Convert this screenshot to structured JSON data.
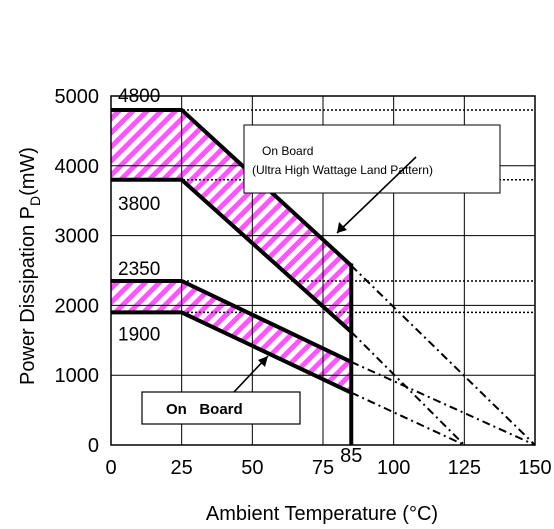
{
  "chart_data": {
    "type": "line",
    "xlabel": "Ambient Temperature (°C)",
    "ylabel": "Power Dissipation P",
    "ylabel_sub": "D",
    "ylabel_unit": "(mW)",
    "xlim": [
      0,
      150
    ],
    "ylim": [
      0,
      5000
    ],
    "x_ticks": [
      0,
      25,
      50,
      75,
      100,
      125,
      150
    ],
    "y_ticks": [
      0,
      1000,
      2000,
      3000,
      4000,
      5000
    ],
    "x_marker": {
      "label": "85",
      "value": 85
    },
    "annotations": [
      {
        "text": "4800",
        "value": 4800
      },
      {
        "text": "3800",
        "value": 3800
      },
      {
        "text": "2350",
        "value": 2350
      },
      {
        "text": "1900",
        "value": 1900
      }
    ],
    "series": [
      {
        "values": [
          [
            0,
            4800
          ],
          [
            25,
            4800
          ],
          [
            85,
            2570
          ]
        ],
        "dashed_extension": [
          [
            85,
            2570
          ],
          [
            150,
            0
          ]
        ]
      },
      {
        "values": [
          [
            0,
            3800
          ],
          [
            25,
            3800
          ],
          [
            85,
            1620
          ]
        ],
        "dashed_extension": [
          [
            85,
            1620
          ],
          [
            125,
            0
          ]
        ]
      },
      {
        "values": [
          [
            0,
            2350
          ],
          [
            25,
            2350
          ],
          [
            85,
            1190
          ]
        ],
        "dashed_extension": [
          [
            85,
            1190
          ],
          [
            150,
            0
          ]
        ]
      },
      {
        "values": [
          [
            0,
            1900
          ],
          [
            25,
            1900
          ],
          [
            85,
            750
          ]
        ],
        "dashed_extension": [
          [
            85,
            750
          ],
          [
            125,
            0
          ]
        ]
      }
    ],
    "callouts": [
      {
        "line1": "On Board",
        "line2": "(Ultra High Wattage Land Pattern)"
      },
      {
        "line1": "On   Board"
      }
    ],
    "grid": true,
    "colors": {
      "hatch": "#ff55ff",
      "line": "#000000"
    }
  }
}
